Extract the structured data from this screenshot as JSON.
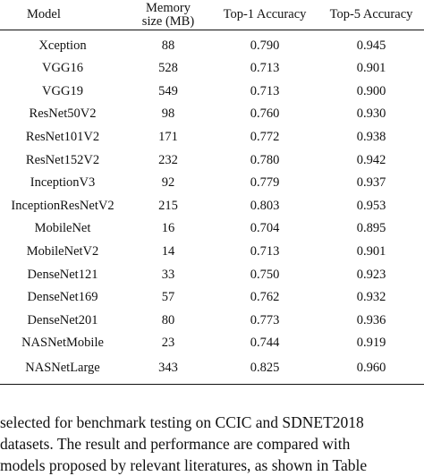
{
  "table": {
    "headers": [
      "Model",
      "Memory size (MB)",
      "Top-1 Accuracy",
      "Top-5 Accuracy"
    ],
    "header_memory_line1": "Memory",
    "header_memory_line2": "size (MB)",
    "rows": [
      [
        "Xception",
        "88",
        "0.790",
        "0.945"
      ],
      [
        "VGG16",
        "528",
        "0.713",
        "0.901"
      ],
      [
        "VGG19",
        "549",
        "0.713",
        "0.900"
      ],
      [
        "ResNet50V2",
        "98",
        "0.760",
        "0.930"
      ],
      [
        "ResNet101V2",
        "171",
        "0.772",
        "0.938"
      ],
      [
        "ResNet152V2",
        "232",
        "0.780",
        "0.942"
      ],
      [
        "InceptionV3",
        "92",
        "0.779",
        "0.937"
      ],
      [
        "InceptionResNetV2",
        "215",
        "0.803",
        "0.953"
      ],
      [
        "MobileNet",
        "16",
        "0.704",
        "0.895"
      ],
      [
        "MobileNetV2",
        "14",
        "0.713",
        "0.901"
      ],
      [
        "DenseNet121",
        "33",
        "0.750",
        "0.923"
      ],
      [
        "DenseNet169",
        "57",
        "0.762",
        "0.932"
      ],
      [
        "DenseNet201",
        "80",
        "0.773",
        "0.936"
      ],
      [
        "NASNetMobile",
        "23",
        "0.744",
        "0.919"
      ],
      [
        "NASNetLarge",
        "343",
        "0.825",
        "0.960"
      ]
    ]
  },
  "paragraph": {
    "lines": [
      "selected for benchmark testing on CCIC and SDNET2018",
      "datasets. The result and performance are compared with",
      "models proposed by relevant literatures, as shown in Table"
    ]
  }
}
